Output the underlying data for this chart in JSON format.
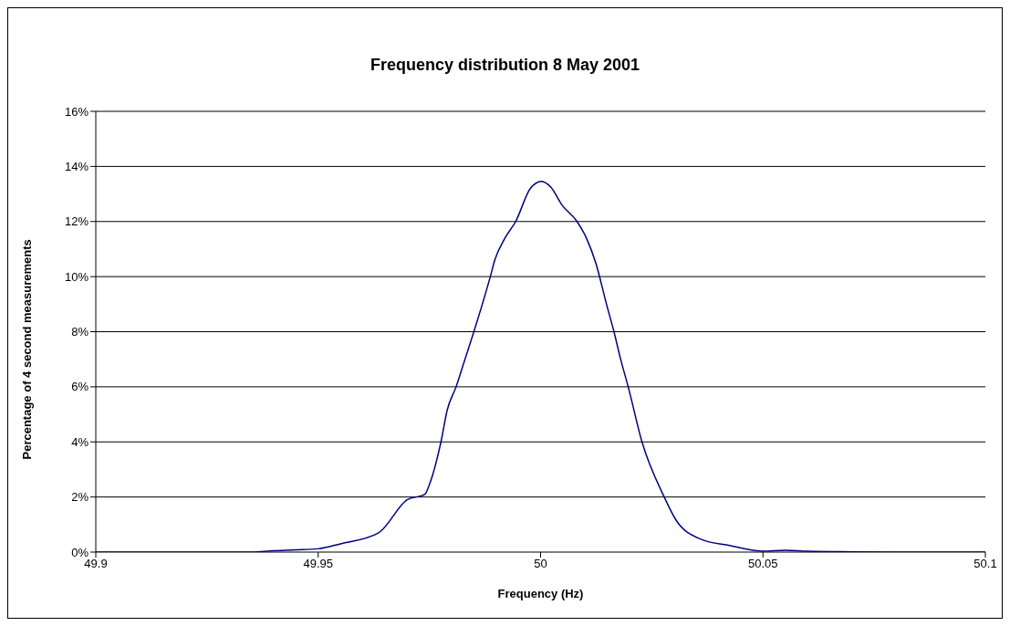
{
  "chart_data": {
    "type": "line",
    "title": "Frequency distribution 8 May 2001",
    "xlabel": "Frequency (Hz)",
    "ylabel": "Percentage of 4 second measurements",
    "x": [
      49.9,
      49.92,
      49.935,
      49.94,
      49.945,
      49.95,
      49.955,
      49.9636,
      49.97,
      49.974,
      49.975,
      49.9776,
      49.979,
      49.981,
      49.983,
      49.985,
      49.9887,
      49.9897,
      49.992,
      49.9944,
      49.9977,
      50.0002,
      50.0023,
      50.0048,
      50.0082,
      50.0103,
      50.0124,
      50.0149,
      50.0165,
      50.018,
      50.0197,
      50.0228,
      50.0278,
      50.0305,
      50.036,
      50.0425,
      50.05,
      50.055,
      50.06,
      50.07,
      50.08,
      50.1
    ],
    "series": [
      {
        "color": "#000080",
        "values": [
          0,
          0,
          0,
          0.05,
          0.08,
          0.12,
          0.3,
          0.7,
          1.9,
          2.1,
          2.45,
          4,
          5.15,
          6,
          7,
          8,
          10,
          10.6,
          11.4,
          12,
          13.2,
          13.46,
          13.25,
          12.6,
          12,
          11.4,
          10.5,
          8.95,
          8,
          7,
          6,
          4,
          2,
          1.15,
          0.47,
          0.24,
          0.03,
          0.07,
          0.03,
          0.01,
          0,
          0
        ]
      }
    ],
    "xlim": [
      49.9,
      50.1
    ],
    "xticks": [
      49.9,
      49.95,
      50,
      50.05,
      50.1
    ],
    "ylim": [
      0,
      16
    ],
    "yticks": [
      {
        "value": 0,
        "label": "0%"
      },
      {
        "value": 2,
        "label": "2%"
      },
      {
        "value": 4,
        "label": "4%"
      },
      {
        "value": 6,
        "label": "6%"
      },
      {
        "value": 8,
        "label": "8%"
      },
      {
        "value": 10,
        "label": "10%"
      },
      {
        "value": 12,
        "label": "12%"
      },
      {
        "value": 14,
        "label": "14%"
      },
      {
        "value": 16,
        "label": "16%"
      }
    ],
    "grid": "y",
    "legend": false,
    "marker": "none",
    "line_style": "solid"
  }
}
